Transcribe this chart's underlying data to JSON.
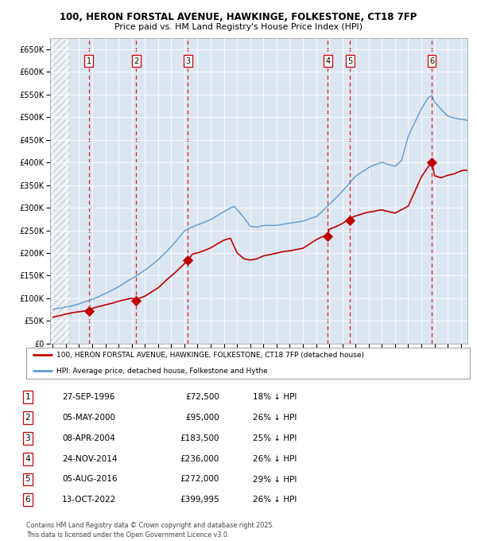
{
  "title_line1": "100, HERON FORSTAL AVENUE, HAWKINGE, FOLKESTONE, CT18 7FP",
  "title_line2": "Price paid vs. HM Land Registry's House Price Index (HPI)",
  "ylim": [
    0,
    675000
  ],
  "yticks": [
    0,
    50000,
    100000,
    150000,
    200000,
    250000,
    300000,
    350000,
    400000,
    450000,
    500000,
    550000,
    600000,
    650000
  ],
  "ytick_labels": [
    "£0",
    "£50K",
    "£100K",
    "£150K",
    "£200K",
    "£250K",
    "£300K",
    "£350K",
    "£400K",
    "£450K",
    "£500K",
    "£550K",
    "£600K",
    "£650K"
  ],
  "hpi_color": "#5b9bd5",
  "price_color": "#c00000",
  "background_color": "#dce6f1",
  "sale_dates_x": [
    1996.74,
    2000.35,
    2004.27,
    2014.9,
    2016.59,
    2022.79
  ],
  "sale_prices_y": [
    72500,
    95000,
    183500,
    236000,
    272000,
    399995
  ],
  "sale_labels": [
    "1",
    "2",
    "3",
    "4",
    "5",
    "6"
  ],
  "legend_label_price": "100, HERON FORSTAL AVENUE, HAWKINGE, FOLKESTONE, CT18 7FP (detached house)",
  "legend_label_hpi": "HPI: Average price, detached house, Folkestone and Hythe",
  "table_rows": [
    [
      "1",
      "27-SEP-1996",
      "£72,500",
      "18% ↓ HPI"
    ],
    [
      "2",
      "05-MAY-2000",
      "£95,000",
      "26% ↓ HPI"
    ],
    [
      "3",
      "08-APR-2004",
      "£183,500",
      "25% ↓ HPI"
    ],
    [
      "4",
      "24-NOV-2014",
      "£236,000",
      "26% ↓ HPI"
    ],
    [
      "5",
      "05-AUG-2016",
      "£272,000",
      "29% ↓ HPI"
    ],
    [
      "6",
      "13-OCT-2022",
      "£399,995",
      "26% ↓ HPI"
    ]
  ],
  "footnote": "Contains HM Land Registry data © Crown copyright and database right 2025.\nThis data is licensed under the Open Government Licence v3.0.",
  "xmin": 1993.8,
  "xmax": 2025.5,
  "hatch_end": 1995.3
}
